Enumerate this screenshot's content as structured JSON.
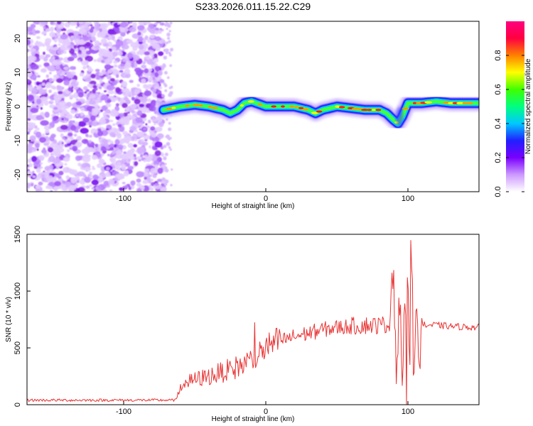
{
  "chart_data": [
    {
      "type": "heatmap",
      "title": "S233.2026.011.15.22.C29",
      "xlabel": "Height of straight line (km)",
      "ylabel": "Frequency (Hz)",
      "xlim": [
        -168,
        150
      ],
      "ylim": [
        -25,
        25
      ],
      "xticks": [
        -100,
        0,
        100
      ],
      "yticks": [
        -20,
        -10,
        0,
        10,
        20
      ],
      "colorbar": {
        "label": "Normalized spectral amplitude",
        "range": [
          0,
          1
        ],
        "ticks": [
          "0.0",
          "0.2",
          "0.4",
          "0.6",
          "0.8"
        ],
        "colors": [
          "#ffffff",
          "#cc99ff",
          "#7a00ff",
          "#2020ff",
          "#00c8ff",
          "#00ff80",
          "#40ff00",
          "#ffff00",
          "#ff8000",
          "#ff0040",
          "#ff0080"
        ]
      },
      "noise_region_x": [
        -168,
        -72
      ],
      "ridge": {
        "x": [
          -72,
          -60,
          -50,
          -40,
          -30,
          -25,
          -20,
          -15,
          -10,
          0,
          10,
          20,
          30,
          35,
          40,
          50,
          60,
          70,
          80,
          85,
          90,
          93,
          96,
          100,
          110,
          120,
          130,
          140,
          150
        ],
        "freq_hz": [
          -1,
          0,
          0.5,
          0,
          -1,
          -2,
          -1,
          1,
          1.5,
          0,
          0,
          0,
          -1,
          -2,
          -1,
          0,
          -0.5,
          -1,
          -1,
          -2,
          -4,
          -5,
          -3,
          1,
          1,
          1.5,
          1,
          1,
          1
        ]
      }
    },
    {
      "type": "line",
      "xlabel": "Height of straight line (km)",
      "ylabel": "SNR (10 * v/v)",
      "xlim": [
        -168,
        150
      ],
      "ylim": [
        0,
        1500
      ],
      "xticks": [
        -100,
        0,
        100
      ],
      "yticks": [
        0,
        500,
        1000,
        1500
      ],
      "color": "#e83232",
      "trend": {
        "x": [
          -168,
          -100,
          -63,
          -60,
          -50,
          -40,
          -30,
          -20,
          -10,
          0,
          10,
          20,
          30,
          40,
          50,
          60,
          70,
          80,
          90,
          95,
          100,
          105,
          110,
          120,
          130,
          150
        ],
        "y": [
          40,
          40,
          40,
          180,
          220,
          250,
          290,
          330,
          390,
          500,
          560,
          600,
          630,
          660,
          680,
          690,
          700,
          700,
          720,
          700,
          680,
          700,
          700,
          700,
          690,
          680
        ]
      },
      "burst": {
        "x": [
          90,
          92,
          94,
          96,
          98,
          99,
          100,
          101,
          102,
          103,
          104,
          106,
          108,
          110
        ],
        "y": [
          1050,
          200,
          1100,
          150,
          1200,
          100,
          1500,
          50,
          1350,
          1250,
          100,
          950,
          300,
          900
        ]
      }
    }
  ]
}
